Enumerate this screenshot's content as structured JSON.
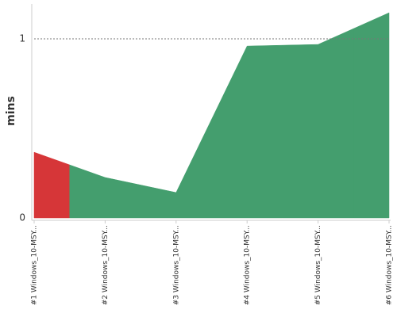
{
  "chart_data": {
    "type": "area",
    "y_label": "mins",
    "categories": [
      "#1 Windows_10-MSY...",
      "#2 Windows_10-MSY...",
      "#3 Windows_10-MSY...",
      "#4 Windows_10-MSY...",
      "#5 Windows_10-MSY...",
      "#6 Windows_10-MSY..."
    ],
    "values": [
      0.367,
      0.226,
      0.142,
      0.96,
      0.969,
      1.146
    ],
    "colors": [
      "#d63638",
      "#449e6e",
      "#449e6e",
      "#449e6e",
      "#449e6e",
      "#449e6e"
    ],
    "ylim": [
      0,
      1.195
    ],
    "yticks": [
      0,
      1
    ],
    "grid": true
  }
}
